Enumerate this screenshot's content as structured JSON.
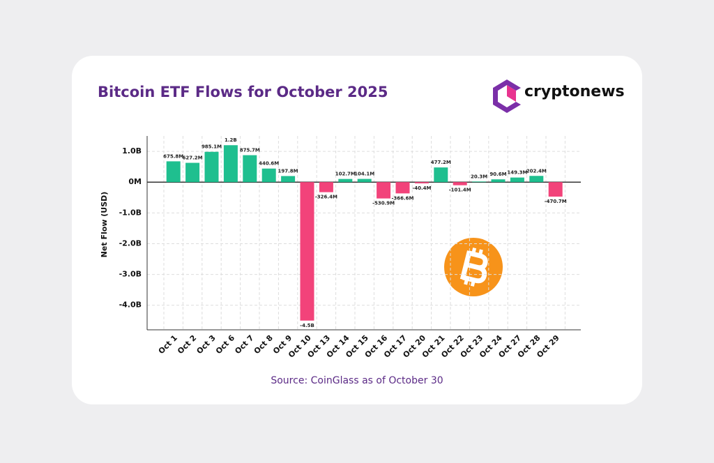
{
  "chart_data": {
    "type": "bar",
    "title": "Bitcoin ETF Flows for October 2025",
    "brand": "cryptonews",
    "y_label": "Net Flow (USD)",
    "source": "Source: CoinGlass as of October 30",
    "categories": [
      "Oct 1",
      "Oct 2",
      "Oct 3",
      "Oct 6",
      "Oct 7",
      "Oct 8",
      "Oct 9",
      "Oct 10",
      "Oct 13",
      "Oct 14",
      "Oct 15",
      "Oct 16",
      "Oct 17",
      "Oct 20",
      "Oct 21",
      "Oct 22",
      "Oct 23",
      "Oct 24",
      "Oct 27",
      "Oct 28",
      "Oct 29"
    ],
    "values": [
      675800000,
      627200000,
      985100000,
      1200000000,
      875700000,
      440600000,
      197800000,
      -4500000000,
      -326400000,
      102700000,
      104100000,
      -530900000,
      -366600000,
      -40400000,
      477200000,
      -101400000,
      20300000,
      90600000,
      149300000,
      202400000,
      -470700000
    ],
    "value_labels": [
      "675.8M",
      "627.2M",
      "985.1M",
      "1.2B",
      "875.7M",
      "440.6M",
      "197.8M",
      "-4.5B",
      "-326.4M",
      "102.7M",
      "104.1M",
      "-530.9M",
      "-366.6M",
      "-40.4M",
      "477.2M",
      "-101.4M",
      "20.3M",
      "90.6M",
      "149.3M",
      "202.4M",
      "-470.7M"
    ],
    "positive_color": "#1fbf8f",
    "negative_color": "#f2437a",
    "ylim": [
      -4800000000,
      1500000000
    ],
    "yticks": [
      {
        "value": 1000000000,
        "label": "1.0B"
      },
      {
        "value": 0,
        "label": "0M"
      },
      {
        "value": -1000000000,
        "label": "-1.0B"
      },
      {
        "value": -2000000000,
        "label": "-2.0B"
      },
      {
        "value": -3000000000,
        "label": "-3.0B"
      },
      {
        "value": -4000000000,
        "label": "-4.0B"
      }
    ],
    "grid": true
  }
}
